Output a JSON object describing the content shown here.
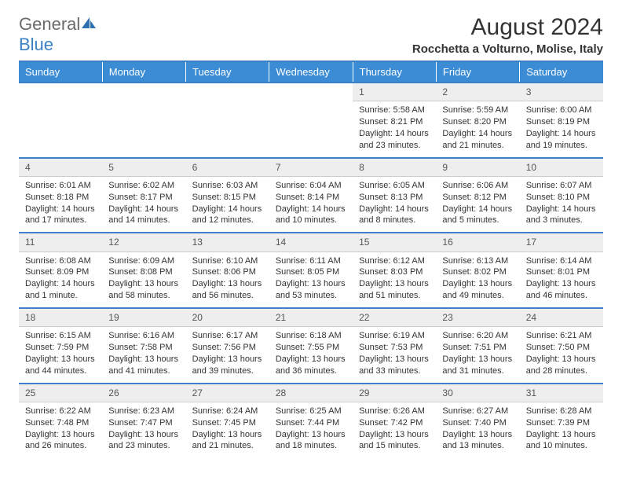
{
  "header": {
    "logo_general": "General",
    "logo_blue": "Blue",
    "month_title": "August 2024",
    "subtitle": "Rocchetta a Volturno, Molise, Italy"
  },
  "colors": {
    "brand_blue": "#3b8cd4",
    "divider_blue": "#3b7fc4",
    "day_bg": "#eeeeee",
    "text": "#333333"
  },
  "weekdays": [
    "Sunday",
    "Monday",
    "Tuesday",
    "Wednesday",
    "Thursday",
    "Friday",
    "Saturday"
  ],
  "weeks": [
    [
      null,
      null,
      null,
      null,
      {
        "n": "1",
        "sunrise": "Sunrise: 5:58 AM",
        "sunset": "Sunset: 8:21 PM",
        "daylight": "Daylight: 14 hours and 23 minutes."
      },
      {
        "n": "2",
        "sunrise": "Sunrise: 5:59 AM",
        "sunset": "Sunset: 8:20 PM",
        "daylight": "Daylight: 14 hours and 21 minutes."
      },
      {
        "n": "3",
        "sunrise": "Sunrise: 6:00 AM",
        "sunset": "Sunset: 8:19 PM",
        "daylight": "Daylight: 14 hours and 19 minutes."
      }
    ],
    [
      {
        "n": "4",
        "sunrise": "Sunrise: 6:01 AM",
        "sunset": "Sunset: 8:18 PM",
        "daylight": "Daylight: 14 hours and 17 minutes."
      },
      {
        "n": "5",
        "sunrise": "Sunrise: 6:02 AM",
        "sunset": "Sunset: 8:17 PM",
        "daylight": "Daylight: 14 hours and 14 minutes."
      },
      {
        "n": "6",
        "sunrise": "Sunrise: 6:03 AM",
        "sunset": "Sunset: 8:15 PM",
        "daylight": "Daylight: 14 hours and 12 minutes."
      },
      {
        "n": "7",
        "sunrise": "Sunrise: 6:04 AM",
        "sunset": "Sunset: 8:14 PM",
        "daylight": "Daylight: 14 hours and 10 minutes."
      },
      {
        "n": "8",
        "sunrise": "Sunrise: 6:05 AM",
        "sunset": "Sunset: 8:13 PM",
        "daylight": "Daylight: 14 hours and 8 minutes."
      },
      {
        "n": "9",
        "sunrise": "Sunrise: 6:06 AM",
        "sunset": "Sunset: 8:12 PM",
        "daylight": "Daylight: 14 hours and 5 minutes."
      },
      {
        "n": "10",
        "sunrise": "Sunrise: 6:07 AM",
        "sunset": "Sunset: 8:10 PM",
        "daylight": "Daylight: 14 hours and 3 minutes."
      }
    ],
    [
      {
        "n": "11",
        "sunrise": "Sunrise: 6:08 AM",
        "sunset": "Sunset: 8:09 PM",
        "daylight": "Daylight: 14 hours and 1 minute."
      },
      {
        "n": "12",
        "sunrise": "Sunrise: 6:09 AM",
        "sunset": "Sunset: 8:08 PM",
        "daylight": "Daylight: 13 hours and 58 minutes."
      },
      {
        "n": "13",
        "sunrise": "Sunrise: 6:10 AM",
        "sunset": "Sunset: 8:06 PM",
        "daylight": "Daylight: 13 hours and 56 minutes."
      },
      {
        "n": "14",
        "sunrise": "Sunrise: 6:11 AM",
        "sunset": "Sunset: 8:05 PM",
        "daylight": "Daylight: 13 hours and 53 minutes."
      },
      {
        "n": "15",
        "sunrise": "Sunrise: 6:12 AM",
        "sunset": "Sunset: 8:03 PM",
        "daylight": "Daylight: 13 hours and 51 minutes."
      },
      {
        "n": "16",
        "sunrise": "Sunrise: 6:13 AM",
        "sunset": "Sunset: 8:02 PM",
        "daylight": "Daylight: 13 hours and 49 minutes."
      },
      {
        "n": "17",
        "sunrise": "Sunrise: 6:14 AM",
        "sunset": "Sunset: 8:01 PM",
        "daylight": "Daylight: 13 hours and 46 minutes."
      }
    ],
    [
      {
        "n": "18",
        "sunrise": "Sunrise: 6:15 AM",
        "sunset": "Sunset: 7:59 PM",
        "daylight": "Daylight: 13 hours and 44 minutes."
      },
      {
        "n": "19",
        "sunrise": "Sunrise: 6:16 AM",
        "sunset": "Sunset: 7:58 PM",
        "daylight": "Daylight: 13 hours and 41 minutes."
      },
      {
        "n": "20",
        "sunrise": "Sunrise: 6:17 AM",
        "sunset": "Sunset: 7:56 PM",
        "daylight": "Daylight: 13 hours and 39 minutes."
      },
      {
        "n": "21",
        "sunrise": "Sunrise: 6:18 AM",
        "sunset": "Sunset: 7:55 PM",
        "daylight": "Daylight: 13 hours and 36 minutes."
      },
      {
        "n": "22",
        "sunrise": "Sunrise: 6:19 AM",
        "sunset": "Sunset: 7:53 PM",
        "daylight": "Daylight: 13 hours and 33 minutes."
      },
      {
        "n": "23",
        "sunrise": "Sunrise: 6:20 AM",
        "sunset": "Sunset: 7:51 PM",
        "daylight": "Daylight: 13 hours and 31 minutes."
      },
      {
        "n": "24",
        "sunrise": "Sunrise: 6:21 AM",
        "sunset": "Sunset: 7:50 PM",
        "daylight": "Daylight: 13 hours and 28 minutes."
      }
    ],
    [
      {
        "n": "25",
        "sunrise": "Sunrise: 6:22 AM",
        "sunset": "Sunset: 7:48 PM",
        "daylight": "Daylight: 13 hours and 26 minutes."
      },
      {
        "n": "26",
        "sunrise": "Sunrise: 6:23 AM",
        "sunset": "Sunset: 7:47 PM",
        "daylight": "Daylight: 13 hours and 23 minutes."
      },
      {
        "n": "27",
        "sunrise": "Sunrise: 6:24 AM",
        "sunset": "Sunset: 7:45 PM",
        "daylight": "Daylight: 13 hours and 21 minutes."
      },
      {
        "n": "28",
        "sunrise": "Sunrise: 6:25 AM",
        "sunset": "Sunset: 7:44 PM",
        "daylight": "Daylight: 13 hours and 18 minutes."
      },
      {
        "n": "29",
        "sunrise": "Sunrise: 6:26 AM",
        "sunset": "Sunset: 7:42 PM",
        "daylight": "Daylight: 13 hours and 15 minutes."
      },
      {
        "n": "30",
        "sunrise": "Sunrise: 6:27 AM",
        "sunset": "Sunset: 7:40 PM",
        "daylight": "Daylight: 13 hours and 13 minutes."
      },
      {
        "n": "31",
        "sunrise": "Sunrise: 6:28 AM",
        "sunset": "Sunset: 7:39 PM",
        "daylight": "Daylight: 13 hours and 10 minutes."
      }
    ]
  ]
}
